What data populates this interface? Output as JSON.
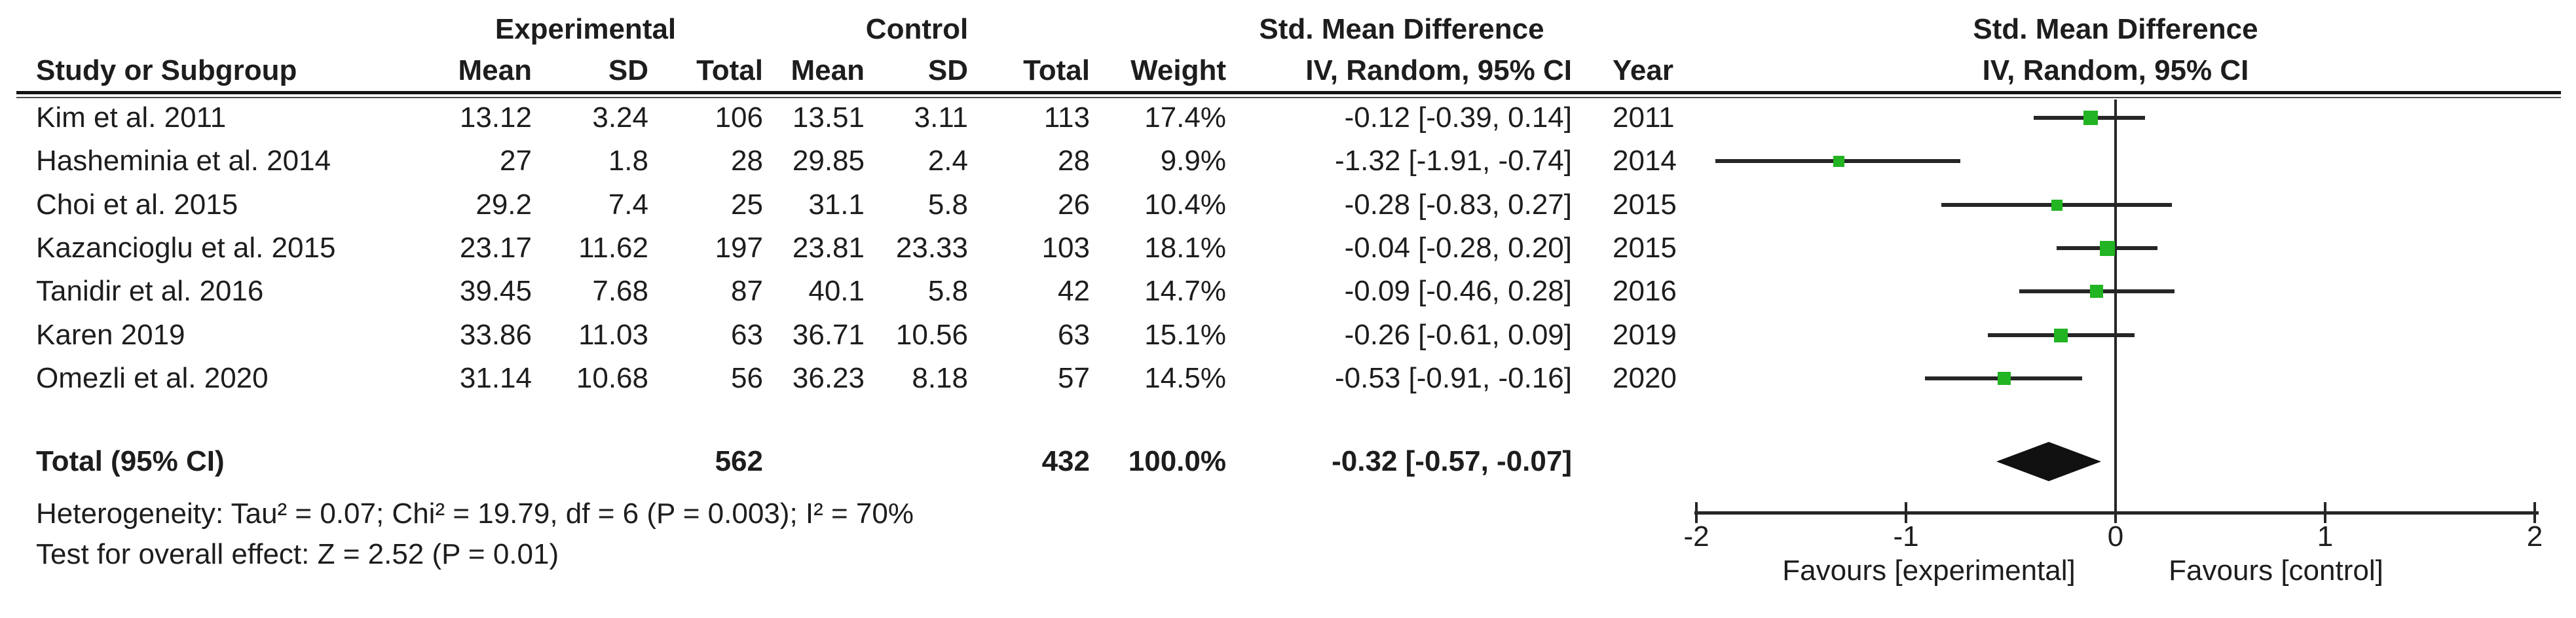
{
  "table": {
    "group_headers": {
      "experimental": "Experimental",
      "control": "Control",
      "smd": "Std. Mean Difference"
    },
    "col_headers": {
      "study": "Study or Subgroup",
      "mean": "Mean",
      "sd": "SD",
      "total": "Total",
      "mean2": "Mean",
      "sd2": "SD",
      "total2": "Total",
      "weight": "Weight",
      "ci": "IV, Random, 95% CI",
      "year": "Year"
    },
    "rows": [
      {
        "study": "Kim et al. 2011",
        "exp_mean": "13.12",
        "exp_sd": "3.24",
        "exp_total": "106",
        "ctl_mean": "13.51",
        "ctl_sd": "3.11",
        "ctl_total": "113",
        "weight": "17.4%",
        "ci": "-0.12 [-0.39, 0.14]",
        "year": "2011",
        "est": -0.12,
        "lo": -0.39,
        "hi": 0.14,
        "weight_pct": 17.4
      },
      {
        "study": "Hasheminia et al. 2014",
        "exp_mean": "27",
        "exp_sd": "1.8",
        "exp_total": "28",
        "ctl_mean": "29.85",
        "ctl_sd": "2.4",
        "ctl_total": "28",
        "weight": "9.9%",
        "ci": "-1.32 [-1.91, -0.74]",
        "year": "2014",
        "est": -1.32,
        "lo": -1.91,
        "hi": -0.74,
        "weight_pct": 9.9
      },
      {
        "study": "Choi et al. 2015",
        "exp_mean": "29.2",
        "exp_sd": "7.4",
        "exp_total": "25",
        "ctl_mean": "31.1",
        "ctl_sd": "5.8",
        "ctl_total": "26",
        "weight": "10.4%",
        "ci": "-0.28 [-0.83, 0.27]",
        "year": "2015",
        "est": -0.28,
        "lo": -0.83,
        "hi": 0.27,
        "weight_pct": 10.4
      },
      {
        "study": "Kazancioglu et al. 2015",
        "exp_mean": "23.17",
        "exp_sd": "11.62",
        "exp_total": "197",
        "ctl_mean": "23.81",
        "ctl_sd": "23.33",
        "ctl_total": "103",
        "weight": "18.1%",
        "ci": "-0.04 [-0.28, 0.20]",
        "year": "2015",
        "est": -0.04,
        "lo": -0.28,
        "hi": 0.2,
        "weight_pct": 18.1
      },
      {
        "study": "Tanidir et al. 2016",
        "exp_mean": "39.45",
        "exp_sd": "7.68",
        "exp_total": "87",
        "ctl_mean": "40.1",
        "ctl_sd": "5.8",
        "ctl_total": "42",
        "weight": "14.7%",
        "ci": "-0.09 [-0.46, 0.28]",
        "year": "2016",
        "est": -0.09,
        "lo": -0.46,
        "hi": 0.28,
        "weight_pct": 14.7
      },
      {
        "study": "Karen 2019",
        "exp_mean": "33.86",
        "exp_sd": "11.03",
        "exp_total": "63",
        "ctl_mean": "36.71",
        "ctl_sd": "10.56",
        "ctl_total": "63",
        "weight": "15.1%",
        "ci": "-0.26 [-0.61, 0.09]",
        "year": "2019",
        "est": -0.26,
        "lo": -0.61,
        "hi": 0.09,
        "weight_pct": 15.1
      },
      {
        "study": "Omezli et al. 2020",
        "exp_mean": "31.14",
        "exp_sd": "10.68",
        "exp_total": "56",
        "ctl_mean": "36.23",
        "ctl_sd": "8.18",
        "ctl_total": "57",
        "weight": "14.5%",
        "ci": "-0.53 [-0.91, -0.16]",
        "year": "2020",
        "est": -0.53,
        "lo": -0.91,
        "hi": -0.16,
        "weight_pct": 14.5
      }
    ],
    "total": {
      "label": "Total (95% CI)",
      "exp_total": "562",
      "ctl_total": "432",
      "weight": "100.0%",
      "ci": "-0.32 [-0.57, -0.07]",
      "est": -0.32,
      "lo": -0.57,
      "hi": -0.07
    },
    "heterogeneity": "Heterogeneity: Tau² = 0.07; Chi² = 19.79, df = 6 (P = 0.003); I² = 70%",
    "overall_effect": "Test for overall effect: Z = 2.52 (P = 0.01)"
  },
  "plot": {
    "header_line1": "Std. Mean Difference",
    "header_line2": "IV, Random, 95% CI",
    "axis_ticks": [
      -2,
      -1,
      0,
      1,
      2
    ],
    "favours_left": "Favours [experimental]",
    "favours_right": "Favours [control]",
    "marker_color": "#22b422",
    "line_color": "#262626"
  },
  "chart_data": {
    "type": "scatter",
    "subtype": "forest-plot",
    "title": "Std. Mean Difference",
    "model": "IV, Random, 95% CI",
    "xlim": [
      -2,
      2
    ],
    "x_ticks": [
      -2,
      -1,
      0,
      1,
      2
    ],
    "x_axis_labels": {
      "left": "Favours [experimental]",
      "right": "Favours [control]"
    },
    "studies": [
      {
        "name": "Kim et al. 2011",
        "year": 2011,
        "est": -0.12,
        "ci_low": -0.39,
        "ci_high": 0.14,
        "weight_pct": 17.4
      },
      {
        "name": "Hasheminia et al. 2014",
        "year": 2014,
        "est": -1.32,
        "ci_low": -1.91,
        "ci_high": -0.74,
        "weight_pct": 9.9
      },
      {
        "name": "Choi et al. 2015",
        "year": 2015,
        "est": -0.28,
        "ci_low": -0.83,
        "ci_high": 0.27,
        "weight_pct": 10.4
      },
      {
        "name": "Kazancioglu et al. 2015",
        "year": 2015,
        "est": -0.04,
        "ci_low": -0.28,
        "ci_high": 0.2,
        "weight_pct": 18.1
      },
      {
        "name": "Tanidir et al. 2016",
        "year": 2016,
        "est": -0.09,
        "ci_low": -0.46,
        "ci_high": 0.28,
        "weight_pct": 14.7
      },
      {
        "name": "Karen 2019",
        "year": 2019,
        "est": -0.26,
        "ci_low": -0.61,
        "ci_high": 0.09,
        "weight_pct": 15.1
      },
      {
        "name": "Omezli et al. 2020",
        "year": 2020,
        "est": -0.53,
        "ci_low": -0.91,
        "ci_high": -0.16,
        "weight_pct": 14.5
      }
    ],
    "overall": {
      "label": "Total (95% CI)",
      "est": -0.32,
      "ci_low": -0.57,
      "ci_high": -0.07,
      "experimental_total": 562,
      "control_total": 432,
      "weight_pct": 100.0
    },
    "heterogeneity": {
      "tau2": 0.07,
      "chi2": 19.79,
      "df": 6,
      "p": 0.003,
      "i2_pct": 70
    },
    "overall_effect_test": {
      "z": 2.52,
      "p": 0.01
    }
  }
}
